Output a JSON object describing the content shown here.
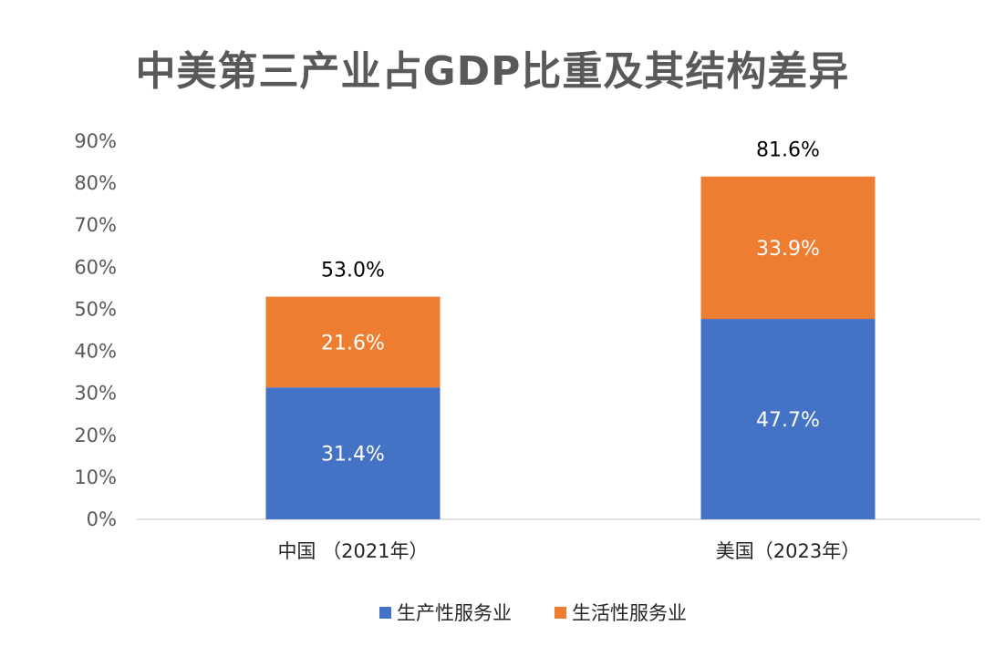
{
  "chart_data": {
    "type": "bar",
    "stacked": true,
    "title": "中美第三产业占GDP比重及其结构差异",
    "categories": [
      "中国 （2021年）",
      "美国（2023年）"
    ],
    "series": [
      {
        "name": "生产性服务业",
        "values": [
          31.4,
          47.7
        ],
        "labels": [
          "31.4%",
          "47.7%"
        ],
        "color": "#4472C4"
      },
      {
        "name": "生活性服务业",
        "values": [
          21.6,
          33.9
        ],
        "labels": [
          "21.6%",
          "33.9%"
        ],
        "color": "#ED7D31"
      }
    ],
    "totals": [
      53.0,
      81.6
    ],
    "total_labels": [
      "53.0%",
      "81.6%"
    ],
    "ylim": [
      0,
      90
    ],
    "yticks": [
      0,
      10,
      20,
      30,
      40,
      50,
      60,
      70,
      80,
      90
    ],
    "ytick_labels": [
      "0%",
      "10%",
      "20%",
      "30%",
      "40%",
      "50%",
      "60%",
      "70%",
      "80%",
      "90%"
    ],
    "grid": false,
    "legend_position": "bottom"
  }
}
